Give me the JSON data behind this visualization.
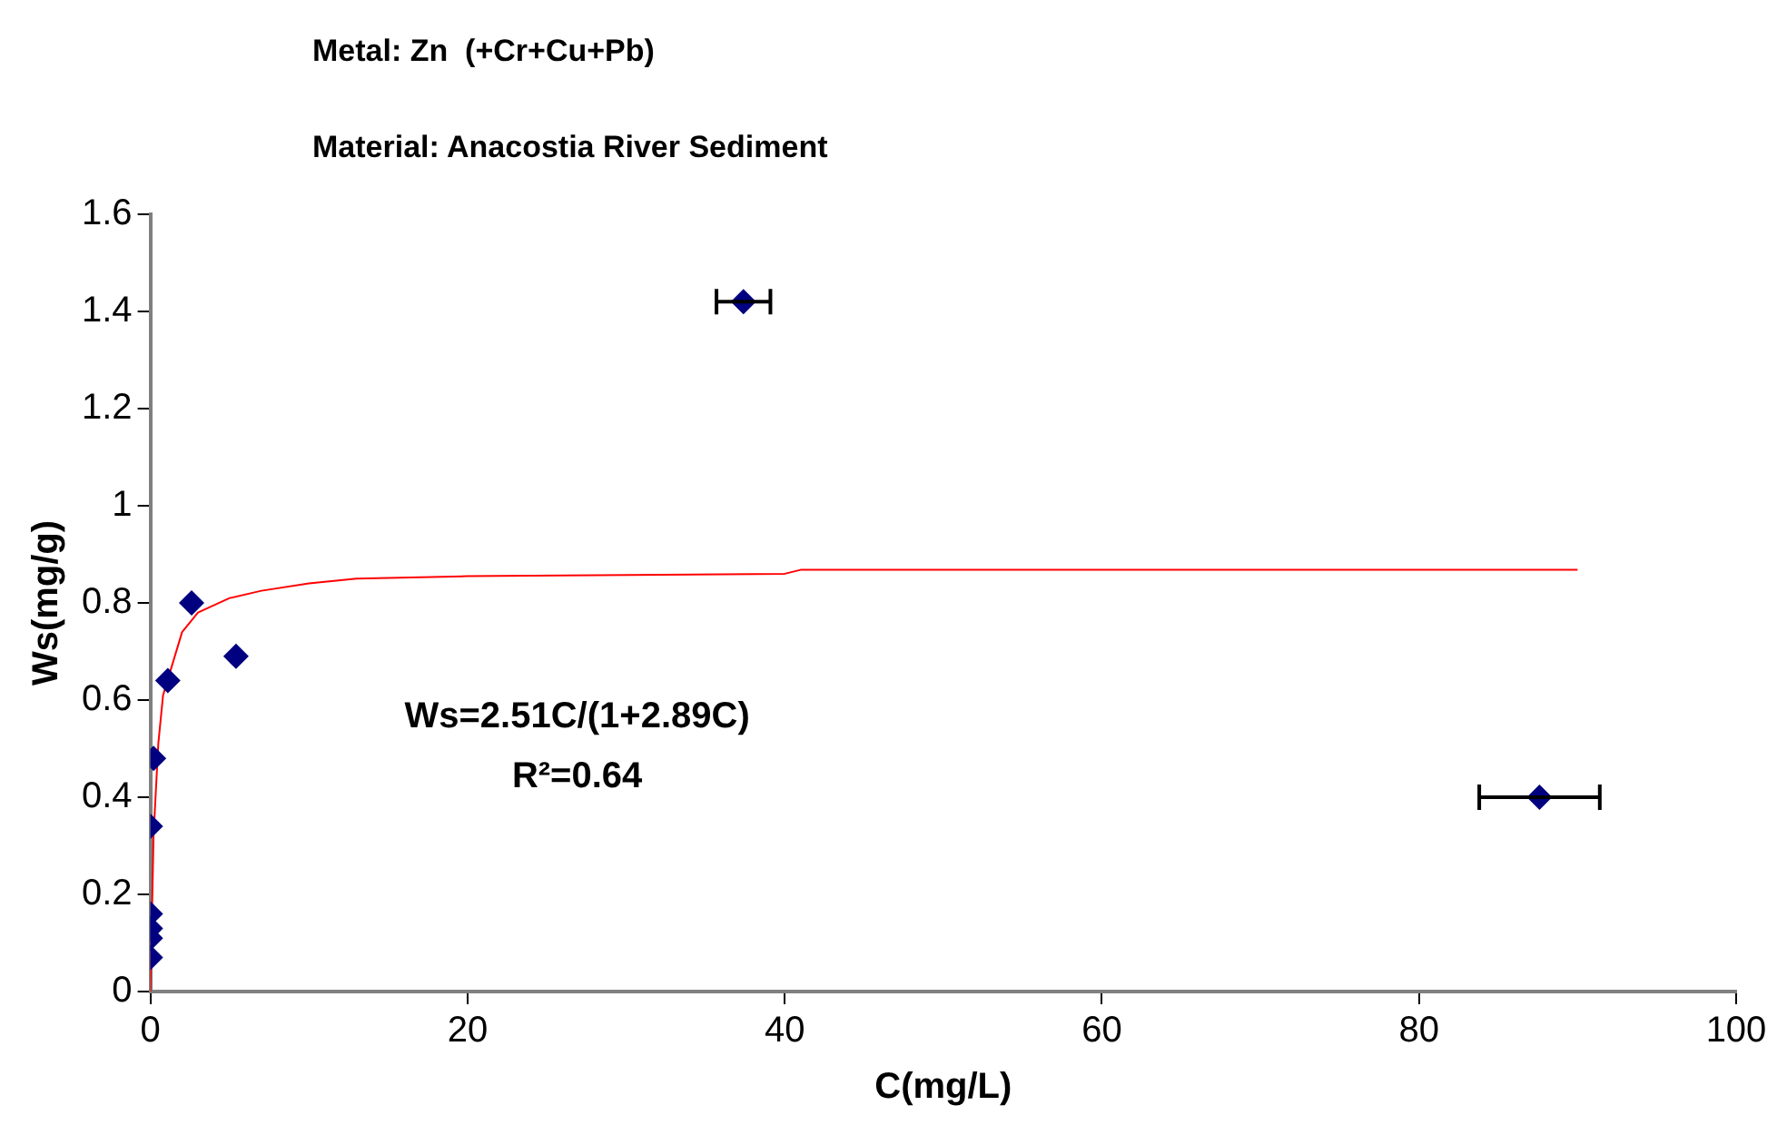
{
  "chart_data": {
    "type": "scatter",
    "title": "Metal: Zn  (+Cr+Cu+Pb)",
    "subtitle": "Material: Anacostia River Sediment",
    "xlabel": "C(mg/L)",
    "ylabel": "Ws(mg/g)",
    "xlim": [
      0,
      100
    ],
    "xticks": [
      0,
      20,
      40,
      60,
      80,
      100
    ],
    "ylim": [
      0,
      1.6
    ],
    "yticks": [
      0,
      0.2,
      0.4,
      0.6,
      0.8,
      1,
      1.2,
      1.4,
      1.6
    ],
    "grid": false,
    "legend": false,
    "marker": "diamond",
    "annotations": [
      "Ws=2.51C/(1+2.89C)",
      "R²=0.64"
    ],
    "series": [
      {
        "color": "#000080",
        "x": [
          0,
          0,
          0,
          0,
          0,
          0.2,
          1.1,
          2.6,
          5.4,
          37.4,
          87.6
        ],
        "values": [
          0.07,
          0.11,
          0.13,
          0.16,
          0.34,
          0.48,
          0.64,
          0.8,
          0.69,
          1.42,
          0.4
        ],
        "xerrors": [
          null,
          null,
          null,
          null,
          null,
          null,
          null,
          null,
          null,
          1.7,
          3.8
        ]
      },
      {
        "type": "line",
        "color": "#ff0000",
        "marker": "none",
        "x": [
          0,
          0.2,
          0.5,
          0.8,
          2,
          3,
          5,
          7,
          10,
          13,
          20,
          40,
          41,
          90
        ],
        "values": [
          0,
          0.32,
          0.51,
          0.61,
          0.74,
          0.78,
          0.81,
          0.825,
          0.84,
          0.85,
          0.855,
          0.86,
          0.868,
          0.868
        ]
      }
    ]
  }
}
